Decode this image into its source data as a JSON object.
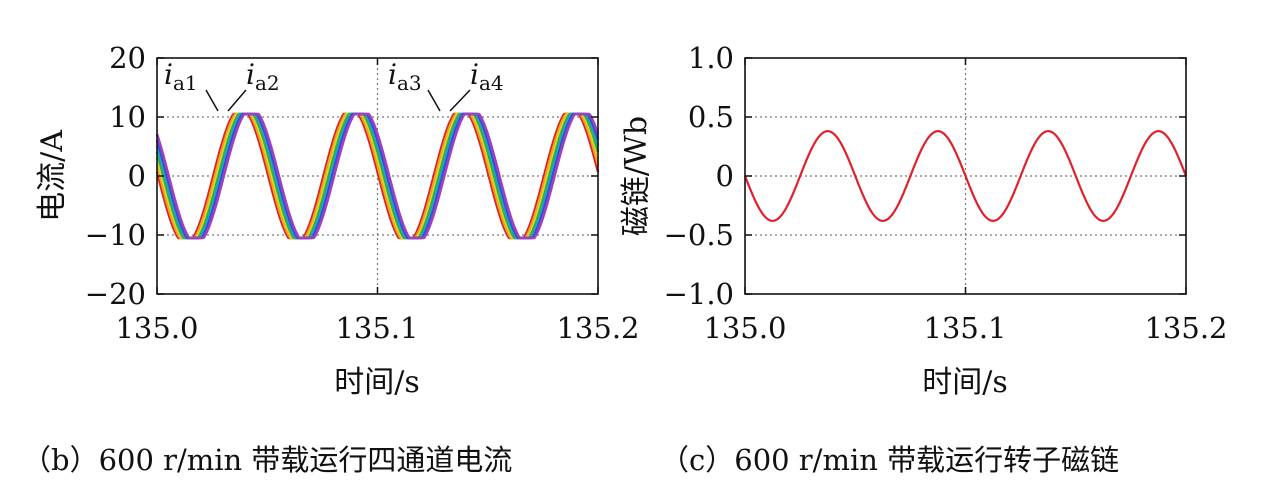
{
  "chart_data": [
    {
      "type": "line",
      "caption": "（b）600 r/min 带载运行四通道电流",
      "xlabel": "时间/s",
      "ylabel": "电流/A",
      "xlim": [
        135.0,
        135.2
      ],
      "ylim": [
        -20,
        20
      ],
      "xticks": [
        "135.0",
        "135.1",
        "135.2"
      ],
      "yticks": [
        "20",
        "10",
        "0",
        "−10",
        "−20"
      ],
      "grid": true,
      "annotations": [
        {
          "italic": "i",
          "sub": "a1"
        },
        {
          "italic": "i",
          "sub": "a2"
        },
        {
          "italic": "i",
          "sub": "a3"
        },
        {
          "italic": "i",
          "sub": "a4"
        }
      ],
      "amplitude": 10.5,
      "period": 0.05,
      "series": [
        {
          "color": "#e0202a",
          "phase_delay": 0.0
        },
        {
          "color": "#f0a020",
          "phase_delay": 0.0008
        },
        {
          "color": "#d8d820",
          "phase_delay": 0.0016
        },
        {
          "color": "#30b040",
          "phase_delay": 0.0024
        },
        {
          "color": "#20a0d0",
          "phase_delay": 0.0032
        },
        {
          "color": "#3050d0",
          "phase_delay": 0.004
        },
        {
          "color": "#a040c0",
          "phase_delay": 0.0048
        }
      ]
    },
    {
      "type": "line",
      "caption": "（c）600 r/min 带载运行转子磁链",
      "xlabel": "时间/s",
      "ylabel": "磁链/Wb",
      "xlim": [
        135.0,
        135.2
      ],
      "ylim": [
        -1.0,
        1.0
      ],
      "xticks": [
        "135.0",
        "135.1",
        "135.2"
      ],
      "yticks": [
        "1.0",
        "0.5",
        "0",
        "−0.5",
        "−1.0"
      ],
      "grid": true,
      "amplitude": 0.38,
      "period": 0.05,
      "series": [
        {
          "color": "#e0202a"
        }
      ]
    }
  ]
}
